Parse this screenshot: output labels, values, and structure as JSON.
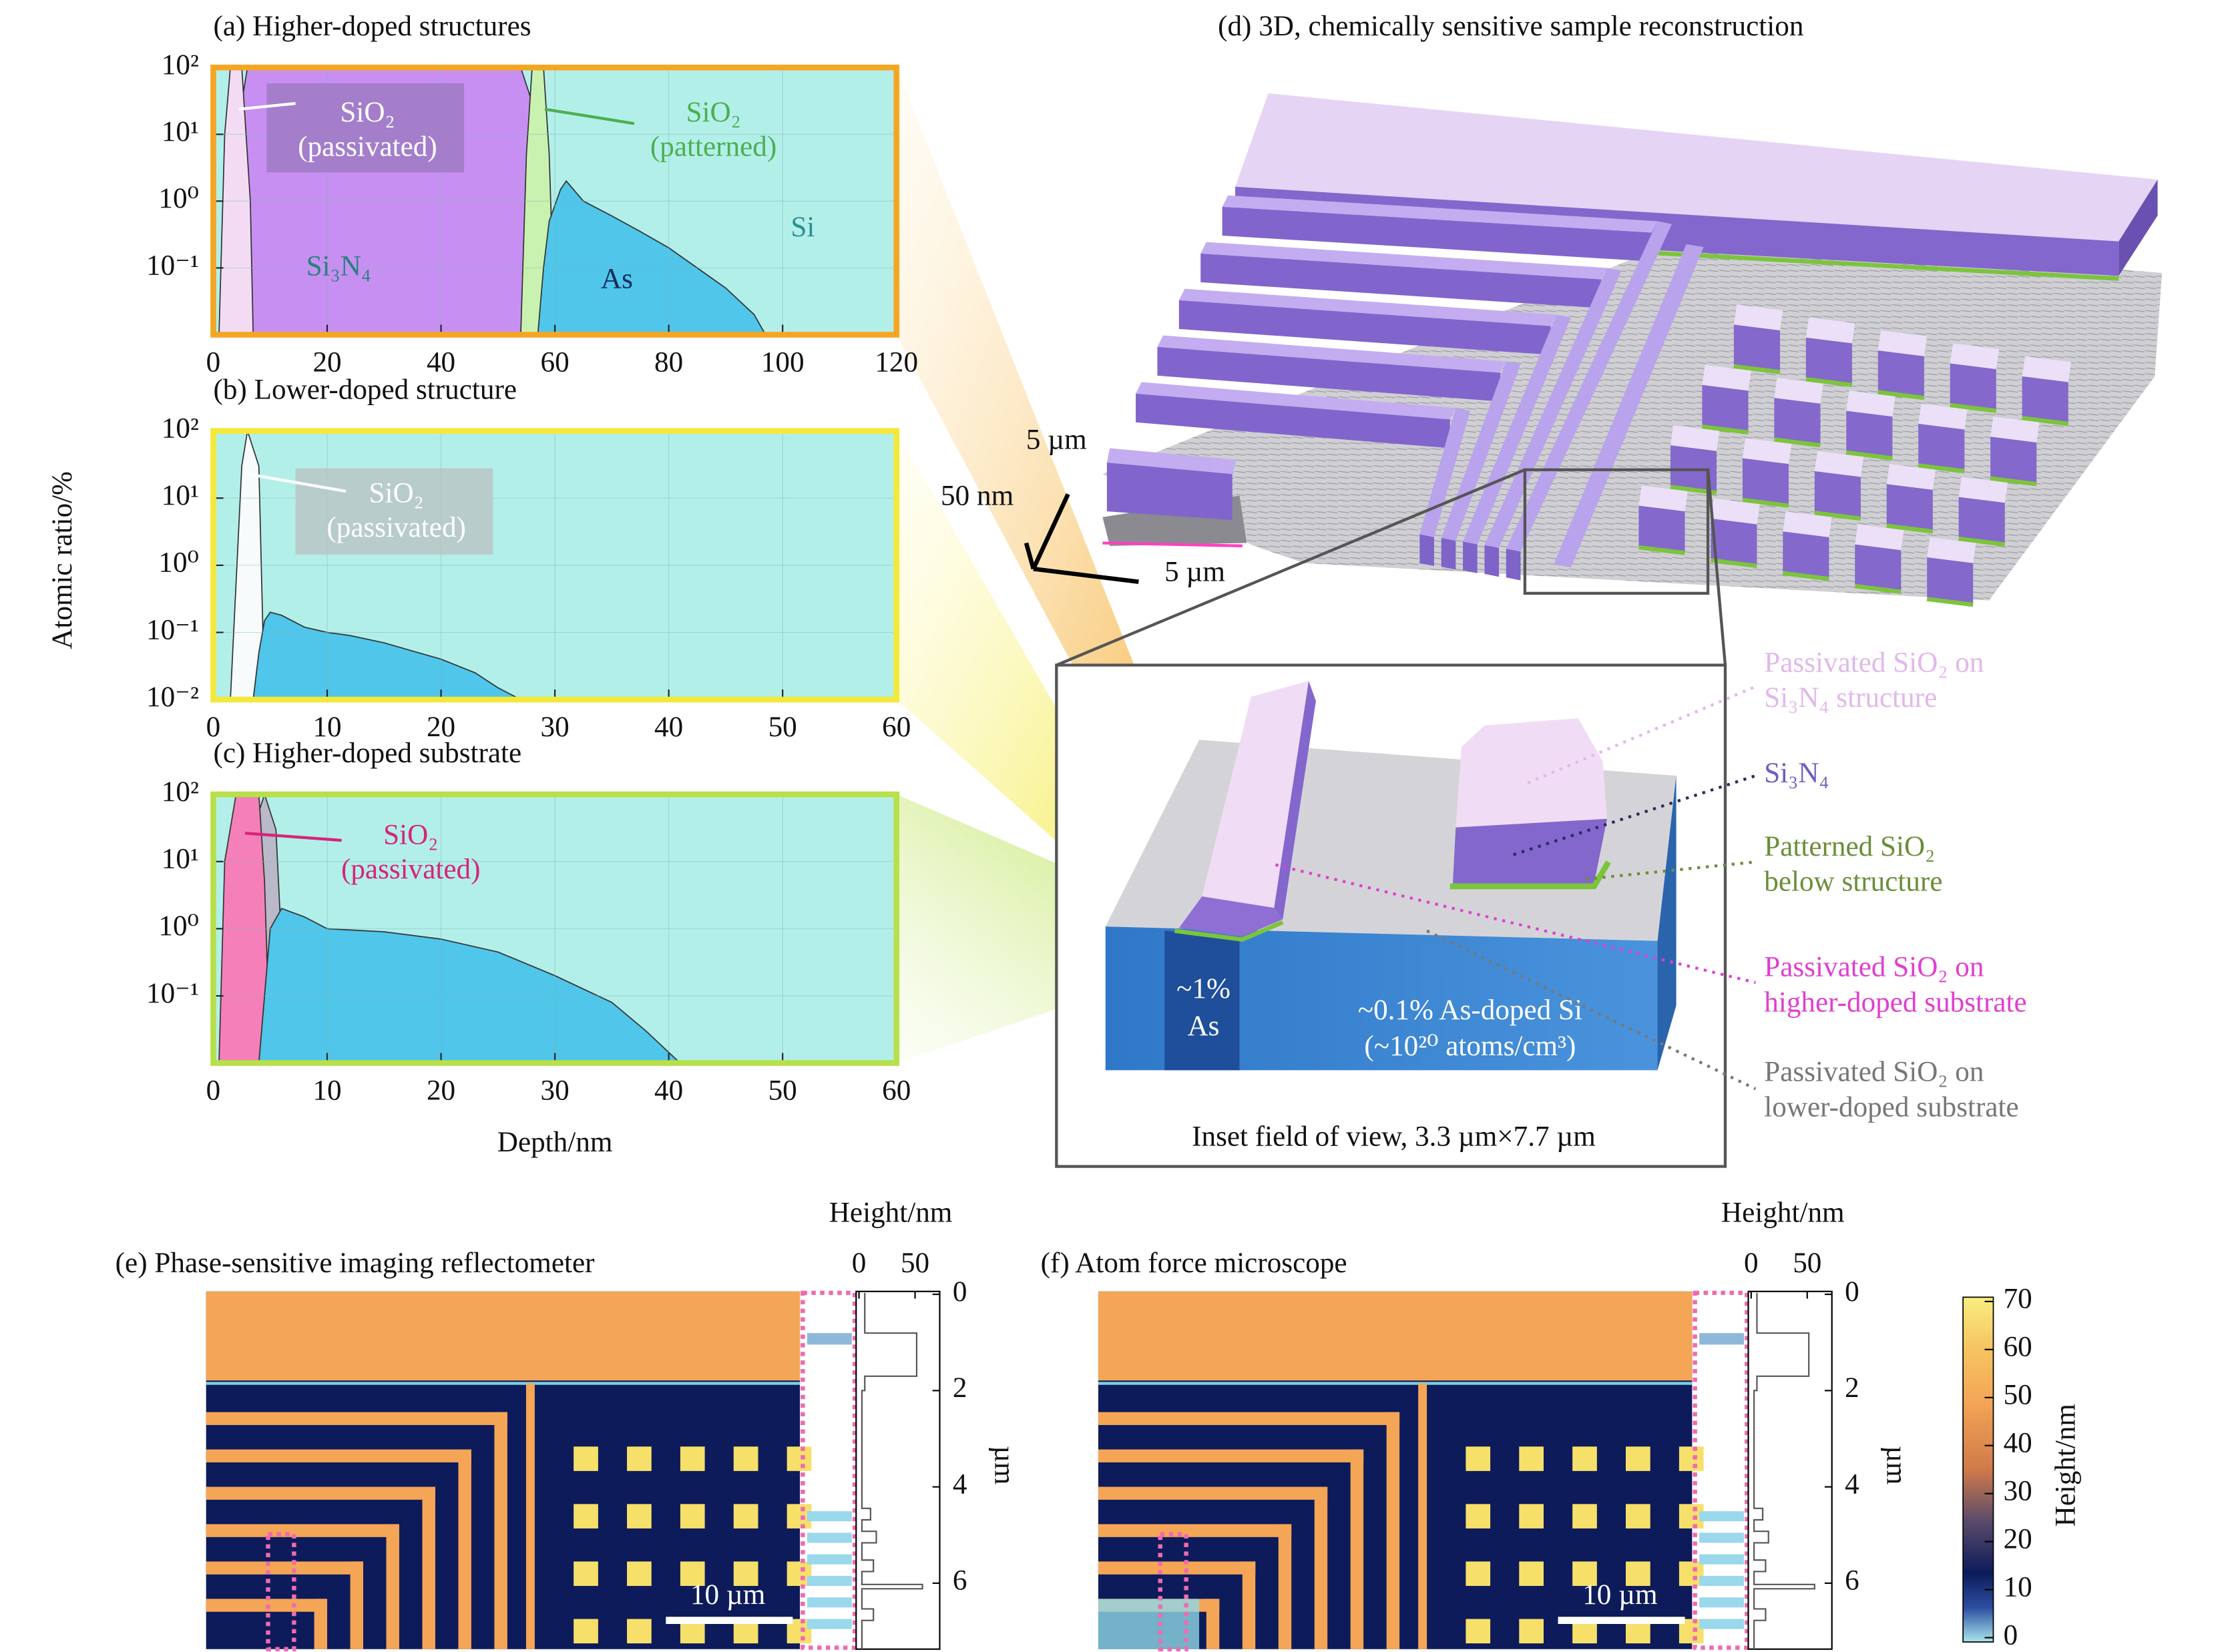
{
  "chart_data": [
    {
      "type": "area",
      "title": "(a) Higher-doped structures",
      "log_y": true,
      "grid": true,
      "xlim": [
        0,
        120
      ],
      "xticks": [
        0,
        20,
        40,
        60,
        80,
        100,
        120
      ],
      "ylim": [
        0.01,
        100
      ],
      "yticks": [
        {
          "value": 100,
          "label": "10²"
        },
        {
          "value": 10,
          "label": "10¹"
        },
        {
          "value": 1,
          "label": "10⁰"
        },
        {
          "value": 0.1,
          "label": "10⁻¹"
        }
      ],
      "frame_color": "#f4a623",
      "series": [
        {
          "name": "Si",
          "color": "#b3efe9",
          "x": [
            0,
            120
          ],
          "values": [
            100,
            100
          ]
        },
        {
          "name": "Si₃N₄",
          "color": "#c78ff2",
          "x": [
            4,
            5,
            6,
            54,
            56,
            57
          ],
          "values": [
            0.01,
            30,
            100,
            100,
            30,
            0.01
          ]
        },
        {
          "name": "SiO₂",
          "qualifier": "(passivated)",
          "color": "#f3dcf3",
          "x": [
            1,
            2,
            3,
            5,
            6.5,
            7
          ],
          "values": [
            0.01,
            10,
            100,
            100,
            1,
            0.01
          ]
        },
        {
          "name": "SiO₂",
          "qualifier": "(patterned)",
          "color": "#c9f2b0",
          "x": [
            54,
            55,
            56,
            58,
            59,
            60
          ],
          "values": [
            0.01,
            5,
            100,
            100,
            5,
            0.01
          ]
        },
        {
          "name": "As",
          "color": "#4fc6ea",
          "x": [
            57,
            58,
            59,
            61,
            62,
            65,
            70,
            75,
            80,
            85,
            90,
            95,
            97
          ],
          "values": [
            0.01,
            0.1,
            0.5,
            1.5,
            2,
            1,
            0.6,
            0.35,
            0.2,
            0.1,
            0.05,
            0.02,
            0.01
          ]
        }
      ]
    },
    {
      "type": "area",
      "title": "(b) Lower-doped structure",
      "log_y": true,
      "grid": true,
      "xlim": [
        0,
        60
      ],
      "xticks": [
        0,
        10,
        20,
        30,
        40,
        50,
        60
      ],
      "ylim": [
        0.01,
        100
      ],
      "yticks": [
        {
          "value": 100,
          "label": "10²"
        },
        {
          "value": 10,
          "label": "10¹"
        },
        {
          "value": 1,
          "label": "10⁰"
        },
        {
          "value": 0.1,
          "label": "10⁻¹"
        },
        {
          "value": 0.01,
          "label": "10⁻²"
        }
      ],
      "frame_color": "#f2e93a",
      "series": [
        {
          "color": "#b3efe9",
          "x": [
            0,
            60
          ],
          "values": [
            100,
            100
          ]
        },
        {
          "name": "SiO₂",
          "qualifier": "(passivated)",
          "color": "#f7fbfb",
          "x": [
            1.5,
            2.5,
            3,
            4,
            4.5
          ],
          "values": [
            0.01,
            30,
            100,
            30,
            0.01
          ]
        },
        {
          "color": "#4fc6ea",
          "x": [
            3.5,
            4,
            4.5,
            5,
            6,
            8,
            10,
            12,
            15,
            18,
            20,
            23,
            25,
            27
          ],
          "values": [
            0.01,
            0.05,
            0.15,
            0.2,
            0.18,
            0.12,
            0.1,
            0.09,
            0.07,
            0.05,
            0.04,
            0.025,
            0.015,
            0.01
          ]
        }
      ]
    },
    {
      "type": "area",
      "title": "(c) Higher-doped substrate",
      "log_y": true,
      "grid": true,
      "xlim": [
        0,
        60
      ],
      "xticks": [
        0,
        10,
        20,
        30,
        40,
        50,
        60
      ],
      "ylim": [
        0.01,
        100
      ],
      "yticks": [
        {
          "value": 100,
          "label": "10²"
        },
        {
          "value": 10,
          "label": "10¹"
        },
        {
          "value": 1,
          "label": "10⁰"
        },
        {
          "value": 0.1,
          "label": "10⁻¹"
        }
      ],
      "frame_color": "#b7e04a",
      "series": [
        {
          "color": "#b3efe9",
          "x": [
            0,
            60
          ],
          "values": [
            100,
            100
          ]
        },
        {
          "color": "#b9b9c9",
          "x": [
            2.5,
            3.5,
            4.5,
            5.5,
            6.5
          ],
          "values": [
            0.01,
            30,
            100,
            30,
            0.01
          ]
        },
        {
          "name": "SiO₂",
          "qualifier": "(passivated)",
          "color": "#f57fb9",
          "x": [
            0.5,
            1,
            2,
            4,
            4.5,
            5
          ],
          "values": [
            0.01,
            10,
            100,
            100,
            5,
            0.01
          ]
        },
        {
          "color": "#4fc6ea",
          "x": [
            4,
            5,
            6,
            8,
            10,
            15,
            20,
            25,
            30,
            35,
            38,
            41
          ],
          "values": [
            0.01,
            1,
            2,
            1.5,
            1,
            0.9,
            0.7,
            0.45,
            0.2,
            0.08,
            0.03,
            0.01
          ]
        }
      ]
    }
  ],
  "shared_axes": {
    "ylabel": "Atomic ratio/%",
    "xlabel": "Depth/nm"
  },
  "panel_d": {
    "title": "(d) 3D, chemically sensitive sample reconstruction",
    "scale": [
      "5 µm",
      "50 nm",
      "5 µm"
    ],
    "as_region": [
      "~1%",
      "As"
    ],
    "doped": [
      "~0.1% As-doped Si",
      "(~10²⁰ atoms/cm³)"
    ],
    "caption": "Inset field of view, 3.3 µm×7.7 µm",
    "legend": [
      {
        "lines": [
          "Passivated SiO₂ on",
          "Si₃N₄ structure"
        ],
        "color": "#e2b8ea"
      },
      {
        "lines": [
          "Si₃N₄"
        ],
        "color": "#6b5fc0"
      },
      {
        "lines": [
          "Patterned SiO₂",
          "below structure"
        ],
        "color": "#6b8e3a"
      },
      {
        "lines": [
          "Passivated SiO₂ on",
          "higher-doped substrate"
        ],
        "color": "#e03fd0"
      },
      {
        "lines": [
          "Passivated SiO₂ on",
          "lower-doped substrate"
        ],
        "color": "#777777"
      }
    ]
  },
  "maps": [
    {
      "title": "(e) Phase-sensitive imaging reflectometer",
      "profile_label": "Height/nm",
      "profile_xlim": [
        0,
        72
      ],
      "profile_xticks": [
        0,
        50
      ],
      "depth_lim": [
        0,
        7.37
      ],
      "depth_ticks": [
        0,
        2,
        4,
        6
      ],
      "depth_label": "µm",
      "scale_bar": "10 µm"
    },
    {
      "title": "(f) Atom force microscope",
      "profile_label": "Height/nm",
      "profile_xlim": [
        0,
        72
      ],
      "profile_xticks": [
        0,
        50
      ],
      "depth_lim": [
        0,
        7.37
      ],
      "depth_ticks": [
        0,
        2,
        4,
        6
      ],
      "depth_label": "µm",
      "scale_bar": "10 µm"
    }
  ],
  "colorbar": {
    "label": "Height/nm",
    "lim": [
      0,
      70
    ],
    "ticks": [
      0,
      10,
      20,
      30,
      40,
      50,
      60,
      70
    ]
  }
}
